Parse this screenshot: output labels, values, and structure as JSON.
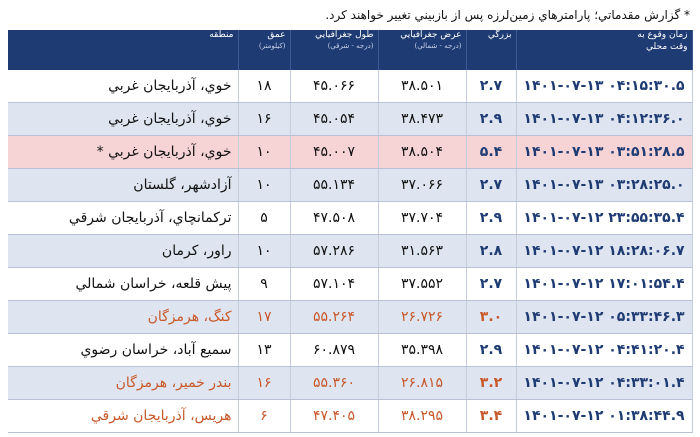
{
  "note": "* گزارش مقدماتي؛ پارامترهاي زمين‌لرزه پس از بازبيني تغيير خواهند كرد.",
  "headers": {
    "region": "منطقه",
    "depth": "عمق",
    "depth_unit": "(كيلومتر)",
    "lon": "طول جغرافيايي",
    "lon_unit": "(درجه - شرقي)",
    "lat": "عرض جغرافيايي",
    "lat_unit": "(درجه - شمالي)",
    "mag": "بزرگي",
    "time": "زمان وقوع به",
    "time_unit": "وقت محلي"
  },
  "rows": [
    {
      "time": "۱۴۰۱-۰۷-۱۳ ۰۴:۱۵:۳۰.۵",
      "mag": "۲.۷",
      "lat": "۳۸.۵۰۱",
      "lon": "۴۵.۰۶۶",
      "depth": "۱۸",
      "region": "خوي، آذربايجان غربي"
    },
    {
      "time": "۱۴۰۱-۰۷-۱۳ ۰۴:۱۲:۳۶.۰",
      "mag": "۲.۹",
      "lat": "۳۸.۴۷۳",
      "lon": "۴۵.۰۵۴",
      "depth": "۱۶",
      "region": "خوي، آذربايجان غربي"
    },
    {
      "time": "۱۴۰۱-۰۷-۱۳ ۰۳:۵۱:۲۸.۵",
      "mag": "۵.۴",
      "lat": "۳۸.۵۰۴",
      "lon": "۴۵.۰۰۷",
      "depth": "۱۰",
      "region": "خوي، آذربايجان غربي *"
    },
    {
      "time": "۱۴۰۱-۰۷-۱۳ ۰۳:۲۸:۲۵.۰",
      "mag": "۲.۷",
      "lat": "۳۷.۰۶۶",
      "lon": "۵۵.۱۳۴",
      "depth": "۱۰",
      "region": "آزادشهر، گلستان"
    },
    {
      "time": "۱۴۰۱-۰۷-۱۲ ۲۳:۵۵:۳۵.۴",
      "mag": "۲.۹",
      "lat": "۳۷.۷۰۴",
      "lon": "۴۷.۵۰۸",
      "depth": "۵",
      "region": "تركمانچاي، آذربايجان شرقي"
    },
    {
      "time": "۱۴۰۱-۰۷-۱۲ ۱۸:۲۸:۰۶.۷",
      "mag": "۲.۸",
      "lat": "۳۱.۵۶۳",
      "lon": "۵۷.۲۸۶",
      "depth": "۱۰",
      "region": "راور، كرمان"
    },
    {
      "time": "۱۴۰۱-۰۷-۱۲ ۱۷:۰۱:۵۴.۴",
      "mag": "۲.۷",
      "lat": "۳۷.۵۵۲",
      "lon": "۵۷.۱۰۴",
      "depth": "۹",
      "region": "پيش قلعه، خراسان شمالي"
    },
    {
      "time": "۱۴۰۱-۰۷-۱۲ ۰۵:۳۳:۴۶.۳",
      "mag": "۳.۰",
      "lat": "۲۶.۷۲۶",
      "lon": "۵۵.۲۶۴",
      "depth": "۱۷",
      "region": "كنگ، هرمزگان"
    },
    {
      "time": "۱۴۰۱-۰۷-۱۲ ۰۴:۴۱:۲۰.۴",
      "mag": "۲.۹",
      "lat": "۳۵.۳۹۸",
      "lon": "۶۰.۸۷۹",
      "depth": "۱۳",
      "region": "سميع آباد، خراسان رضوي"
    },
    {
      "time": "۱۴۰۱-۰۷-۱۲ ۰۴:۳۳:۰۱.۴",
      "mag": "۳.۲",
      "lat": "۲۶.۸۱۵",
      "lon": "۵۵.۳۶۰",
      "depth": "۱۶",
      "region": "بندر خمير، هرمزگان"
    },
    {
      "time": "۱۴۰۱-۰۷-۱۲ ۰۱:۳۸:۴۴.۹",
      "mag": "۳.۴",
      "lat": "۳۸.۲۹۵",
      "lon": "۴۷.۴۰۵",
      "depth": "۶",
      "region": "هريس، آذربايجان شرقي"
    }
  ],
  "row_styles": [
    "plain",
    "alt",
    "high",
    "alt",
    "plain",
    "alt",
    "plain",
    "alt-red",
    "plain",
    "alt-red",
    "plain-red"
  ]
}
